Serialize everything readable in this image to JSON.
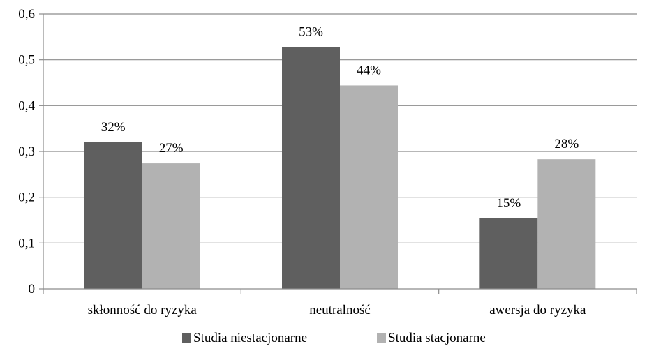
{
  "chart_data": {
    "type": "bar",
    "categories": [
      "skłonność do ryzyka",
      "neutralność",
      "awersja do ryzyka"
    ],
    "series": [
      {
        "name": "Studia niestacjonarne",
        "color": "#5f5f5f",
        "values": [
          0.32,
          0.528,
          0.154
        ],
        "labels": [
          "32%",
          "53%",
          "15%"
        ]
      },
      {
        "name": "Studia stacjonarne",
        "color": "#b2b2b2",
        "values": [
          0.274,
          0.444,
          0.283
        ],
        "labels": [
          "27%",
          "44%",
          "28%"
        ]
      }
    ],
    "yticks": [
      "0",
      "0,1",
      "0,2",
      "0,3",
      "0,4",
      "0,5",
      "0,6"
    ],
    "ylim": [
      0,
      0.6
    ],
    "grid": true,
    "legend_position": "bottom"
  }
}
